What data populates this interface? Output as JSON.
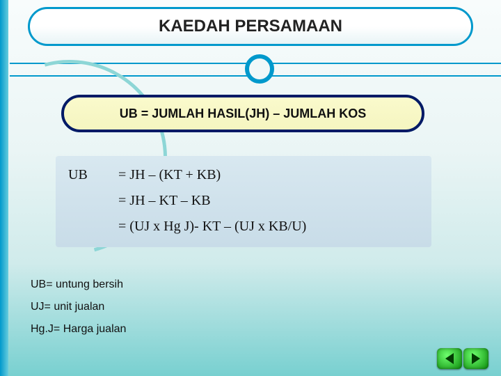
{
  "title": "KAEDAH PERSAMAAN",
  "main_formula": "UB = JUMLAH HASIL(JH) – JUMLAH KOS",
  "equations": {
    "label": "UB",
    "lines": [
      "= JH – (KT + KB)",
      "= JH – KT – KB",
      "= (UJ x Hg J)- KT – (UJ x KB/U)"
    ]
  },
  "legend": [
    "UB= untung bersih",
    "UJ= unit jualan",
    "Hg.J= Harga jualan"
  ],
  "colors": {
    "accent": "#0099cc",
    "pill_bg": "#f5f5c0",
    "pill_border": "#001a66",
    "eq_bg": "#d0e2ec",
    "nav_green": "#0a8a0a"
  }
}
